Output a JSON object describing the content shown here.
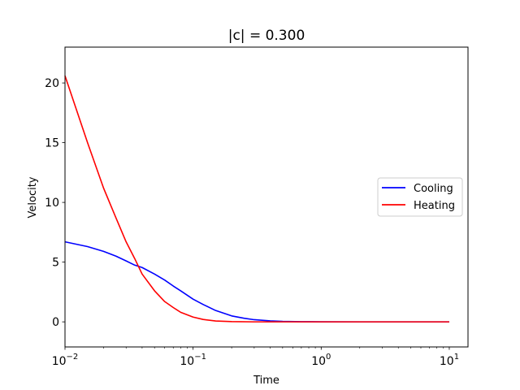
{
  "chart_data": {
    "type": "line",
    "title": "|c| = 0.300",
    "xlabel": "Time",
    "ylabel": "Velocity",
    "xscale": "log",
    "xlim": [
      0.01,
      14
    ],
    "ylim": [
      -2.1,
      23
    ],
    "x_ticks": [
      {
        "value": 0.01,
        "base": "10",
        "exp": "−2"
      },
      {
        "value": 0.1,
        "base": "10",
        "exp": "−1"
      },
      {
        "value": 1,
        "base": "10",
        "exp": "0"
      },
      {
        "value": 10,
        "base": "10",
        "exp": "1"
      }
    ],
    "y_ticks": [
      {
        "value": 0,
        "label": "0"
      },
      {
        "value": 5,
        "label": "5"
      },
      {
        "value": 10,
        "label": "10"
      },
      {
        "value": 15,
        "label": "15"
      },
      {
        "value": 20,
        "label": "20"
      }
    ],
    "grid": false,
    "legend_position": "center-right",
    "series": [
      {
        "name": "Cooling",
        "color": "#0000ff",
        "x": [
          0.01,
          0.015,
          0.02,
          0.025,
          0.03,
          0.035,
          0.04,
          0.05,
          0.06,
          0.07,
          0.08,
          0.1,
          0.12,
          0.15,
          0.2,
          0.25,
          0.3,
          0.4,
          0.5,
          0.7,
          1,
          2,
          5,
          10
        ],
        "y": [
          6.7,
          6.3,
          5.9,
          5.5,
          5.1,
          4.75,
          4.55,
          4.0,
          3.5,
          3.0,
          2.6,
          1.9,
          1.45,
          0.95,
          0.5,
          0.3,
          0.18,
          0.08,
          0.04,
          0.015,
          0.005,
          0.0,
          0.0,
          0.0
        ]
      },
      {
        "name": "Heating",
        "color": "#ff0000",
        "x": [
          0.01,
          0.015,
          0.02,
          0.025,
          0.03,
          0.035,
          0.04,
          0.05,
          0.06,
          0.07,
          0.08,
          0.1,
          0.12,
          0.15,
          0.2,
          0.3,
          0.5,
          1,
          2,
          5,
          10
        ],
        "y": [
          20.6,
          15.0,
          11.2,
          8.7,
          6.7,
          5.3,
          4.0,
          2.6,
          1.7,
          1.2,
          0.8,
          0.4,
          0.2,
          0.07,
          0.02,
          0.0,
          0.0,
          0.0,
          0.0,
          0.0,
          0.0
        ]
      }
    ]
  }
}
